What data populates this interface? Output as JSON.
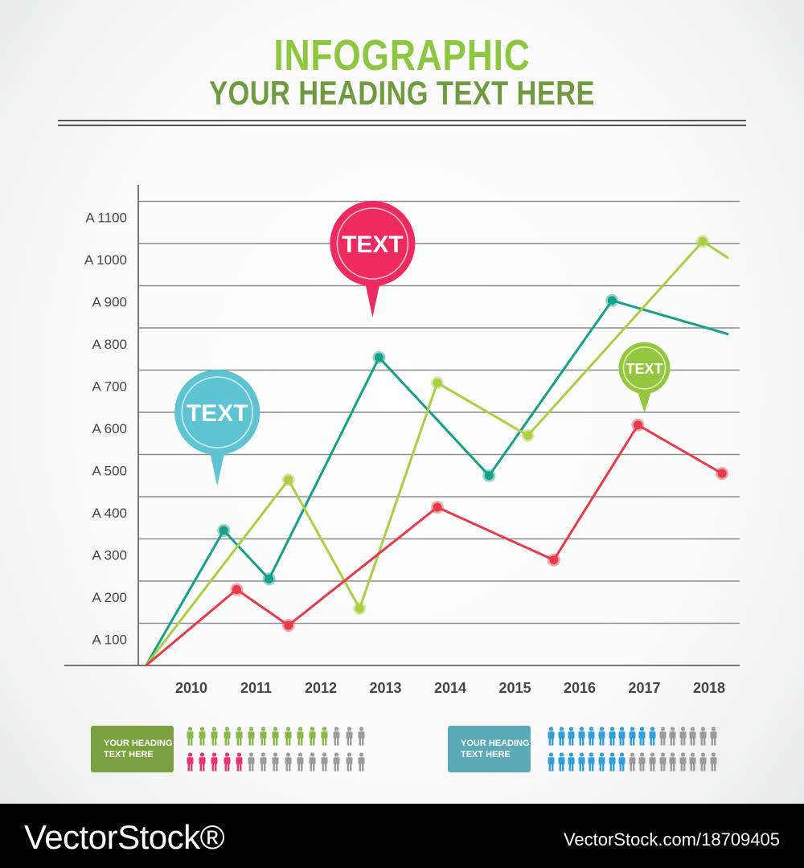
{
  "header": {
    "title": "INFOGRAPHIC",
    "subtitle": "YOUR HEADING TEXT HERE"
  },
  "colors": {
    "title": "#8dc63f",
    "subtitle": "#6f9a3f",
    "teal": "#15a08a",
    "lime": "#a9cf45",
    "red": "#e63c4a",
    "pin_pink": "#ee2a5e",
    "pin_blue": "#5ec3d3",
    "pin_green": "#94c73d",
    "people_green": "#86b94a",
    "people_pink": "#e8336e",
    "people_blue": "#2f9fe0",
    "people_gray": "#9b9b9b",
    "legend_green": "#7aa13d",
    "legend_teal": "#5aaab7"
  },
  "chart_data": {
    "type": "line",
    "title": "",
    "xlabel": "",
    "ylabel": "",
    "categories": [
      "2010",
      "2011",
      "2012",
      "2013",
      "2014",
      "2015",
      "2016",
      "2017",
      "2018"
    ],
    "y_tick_labels": [
      "A 100",
      "A 200",
      "A 300",
      "A 400",
      "A 500",
      "A 600",
      "A 700",
      "A 800",
      "A 900",
      "A 1000",
      "A 1100"
    ],
    "ylim": [
      0,
      1100
    ],
    "grid": true,
    "legend": "none",
    "series": [
      {
        "color": "#15a08a",
        "points": [
          [
            2009.3,
            0
          ],
          [
            2010.5,
            320
          ],
          [
            2011.2,
            205
          ],
          [
            2012.9,
            730
          ],
          [
            2014.6,
            450
          ],
          [
            2016.5,
            865
          ],
          [
            2018.3,
            785
          ]
        ],
        "markers": [
          1,
          2,
          3,
          4,
          5
        ]
      },
      {
        "color": "#a9cf45",
        "points": [
          [
            2009.3,
            0
          ],
          [
            2011.5,
            440
          ],
          [
            2012.6,
            135
          ],
          [
            2013.8,
            670
          ],
          [
            2015.2,
            545
          ],
          [
            2017.9,
            1005
          ],
          [
            2018.3,
            965
          ]
        ],
        "markers": [
          1,
          2,
          3,
          4,
          5
        ]
      },
      {
        "color": "#e63c4a",
        "points": [
          [
            2009.3,
            0
          ],
          [
            2010.7,
            180
          ],
          [
            2011.5,
            95
          ],
          [
            2013.8,
            375
          ],
          [
            2015.6,
            250
          ],
          [
            2016.9,
            570
          ],
          [
            2018.2,
            455
          ]
        ],
        "markers": [
          1,
          2,
          3,
          4,
          5,
          6
        ]
      }
    ],
    "annotations": [
      {
        "label": "TEXT",
        "color": "#ee2a5e",
        "x": 2012.8,
        "y": 1000,
        "size": "large"
      },
      {
        "label": "TEXT",
        "color": "#5ec3d3",
        "x": 2010.4,
        "y": 600,
        "size": "large"
      },
      {
        "label": "TEXT",
        "color": "#94c73d",
        "x": 2017.0,
        "y": 705,
        "size": "small"
      }
    ]
  },
  "legend_left": {
    "label": "YOUR HEADING TEXT HERE",
    "rows": [
      {
        "color": "#86b94a",
        "filled": 12,
        "total": 15
      },
      {
        "color": "#e8336e",
        "filled": 5,
        "total": 15
      }
    ]
  },
  "legend_right": {
    "label": "YOUR HEADING TEXT HERE",
    "rows": [
      {
        "color": "#2f9fe0",
        "filled": 11,
        "total": 17
      },
      {
        "color": "#2f9fe0",
        "filled": 8,
        "total": 17
      }
    ]
  },
  "footer": {
    "watermark_left": "VectorStock®",
    "watermark_right": "VectorStock.com/18709405"
  }
}
